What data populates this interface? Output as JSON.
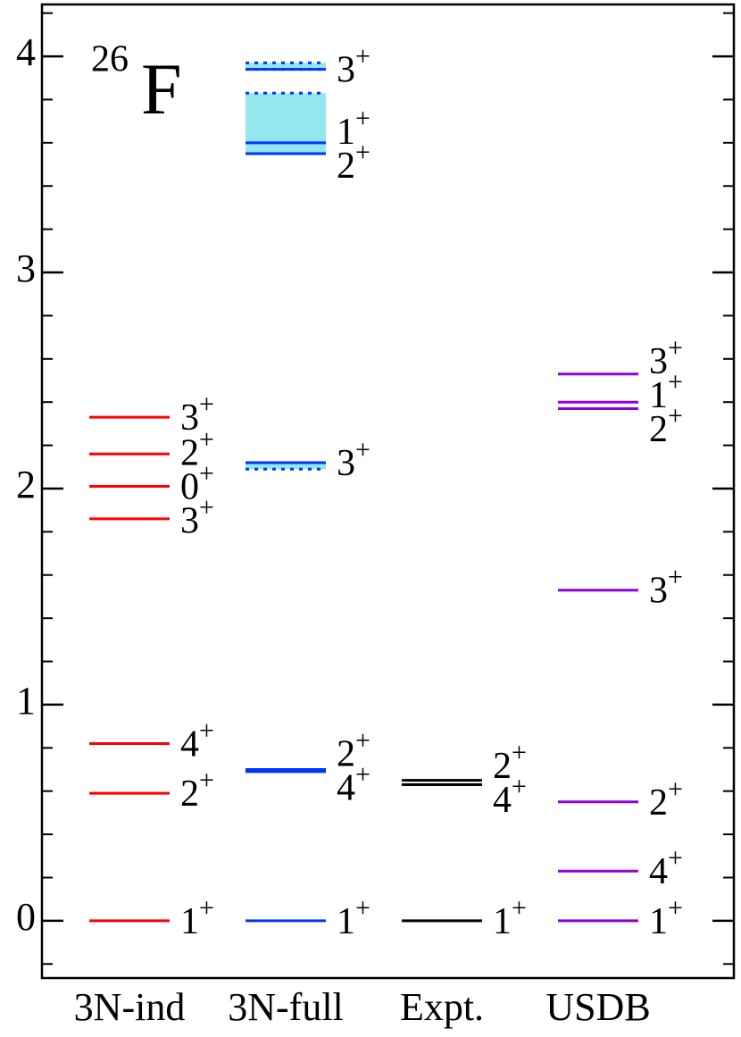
{
  "chart_data": {
    "type": "level-scheme",
    "title": "F",
    "title_superscript": "26",
    "ylim": [
      -0.265,
      4.24
    ],
    "yticks": [
      0,
      1,
      2,
      3,
      4
    ],
    "minor_yticks": [
      -0.2,
      0.2,
      0.4,
      0.6,
      0.8,
      1.2,
      1.4,
      1.6,
      1.8,
      2.2,
      2.4,
      2.6,
      2.8,
      3.2,
      3.4,
      3.6,
      3.8,
      4.2
    ],
    "parity": "+",
    "series": [
      {
        "name": "3N-ind",
        "color": "#ff0000",
        "values": [
          0,
          0.59,
          0.82,
          1.86,
          2.01,
          2.16,
          2.33
        ],
        "spins": [
          "1",
          "2",
          "4",
          "3",
          "0",
          "2",
          "3"
        ]
      },
      {
        "name": "3N-full",
        "color": "#0033ff",
        "values": [
          0,
          0.69,
          0.7,
          2.12,
          3.55,
          3.6,
          3.94
        ],
        "spins": [
          "1",
          "4",
          "2",
          "3",
          "2",
          "1",
          "3"
        ],
        "band_color": "#66dde8",
        "bands": [
          {
            "low": 2.09,
            "high": 2.12
          },
          {
            "low": 3.55,
            "high": 3.83
          },
          {
            "low": 3.94,
            "high": 3.97
          }
        ]
      },
      {
        "name": "Expt.",
        "color": "#000000",
        "values": [
          0,
          0.63,
          0.65
        ],
        "spins": [
          "1",
          "4",
          "2"
        ]
      },
      {
        "name": "USDB",
        "color": "#9400d3",
        "values": [
          0,
          0.23,
          0.55,
          1.53,
          2.37,
          2.4,
          2.53
        ],
        "spins": [
          "1",
          "4",
          "2",
          "3",
          "2",
          "1",
          "3"
        ]
      }
    ]
  }
}
